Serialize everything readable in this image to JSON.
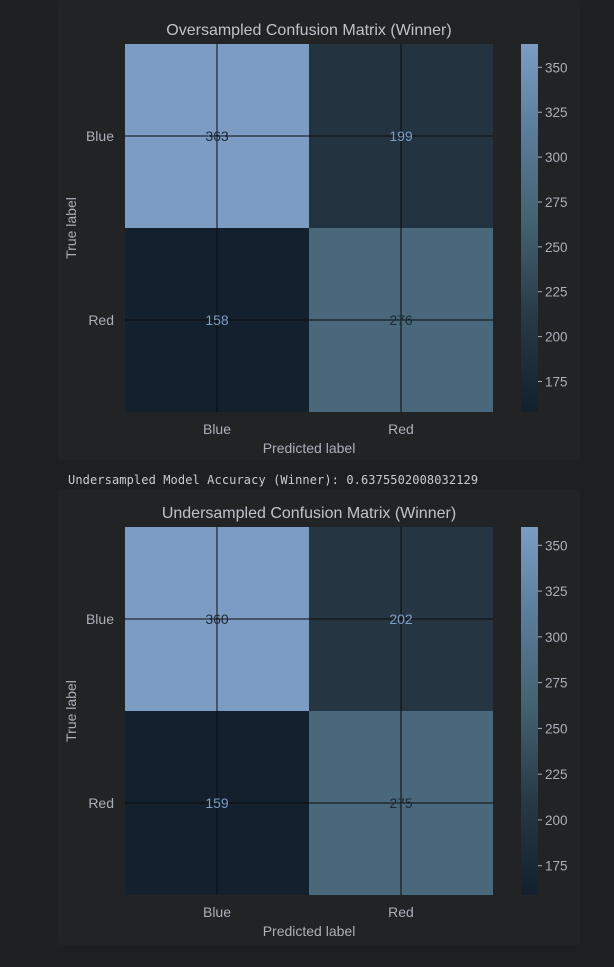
{
  "log_line": "Undersampled Model Accuracy (Winner): 0.6375502008032129",
  "colors": {
    "cmap": [
      "#13202d",
      "#283845",
      "#41606f",
      "#5a7a99",
      "#7d9cc4"
    ],
    "grid": "#0b0c0e",
    "text_light": "#7f9cc2",
    "text_dark": "#1e2a36"
  },
  "chart_data": [
    {
      "type": "heatmap",
      "title": "Oversampled Confusion Matrix (Winner)",
      "xlabel": "Predicted label",
      "ylabel": "True label",
      "x_categories": [
        "Blue",
        "Red"
      ],
      "y_categories": [
        "Blue",
        "Red"
      ],
      "values": [
        [
          363,
          199
        ],
        [
          158,
          276
        ]
      ],
      "colorbar": {
        "vmin": 158,
        "vmax": 363,
        "ticks": [
          175,
          200,
          225,
          250,
          275,
          300,
          325,
          350
        ]
      },
      "grid": true
    },
    {
      "type": "heatmap",
      "title": "Undersampled Confusion Matrix (Winner)",
      "xlabel": "Predicted label",
      "ylabel": "True label",
      "x_categories": [
        "Blue",
        "Red"
      ],
      "y_categories": [
        "Blue",
        "Red"
      ],
      "values": [
        [
          360,
          202
        ],
        [
          159,
          275
        ]
      ],
      "colorbar": {
        "vmin": 159,
        "vmax": 360,
        "ticks": [
          175,
          200,
          225,
          250,
          275,
          300,
          325,
          350
        ]
      },
      "grid": true
    }
  ]
}
